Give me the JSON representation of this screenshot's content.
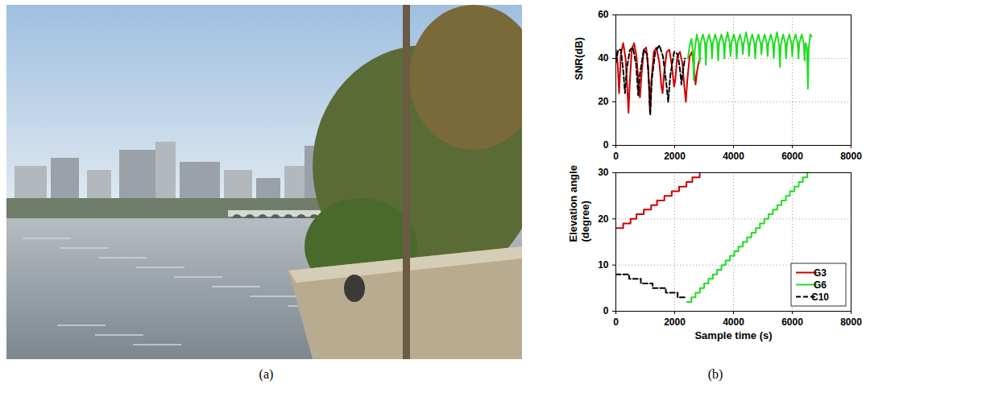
{
  "captions": [
    "(a)",
    "(b)"
  ],
  "chart_data": [
    {
      "type": "line",
      "ylabel": "SNR(dB)",
      "xlim": [
        0,
        8000
      ],
      "xticks": [
        0,
        2000,
        4000,
        6000,
        8000
      ],
      "ylim": [
        0,
        60
      ],
      "yticks": [
        0,
        20,
        40,
        60
      ],
      "grid": true,
      "series": [
        {
          "name": "G3",
          "color": "#d00000",
          "line_style": "solid",
          "x": [
            0,
            60,
            110,
            170,
            250,
            330,
            390,
            430,
            470,
            540,
            620,
            700,
            780,
            820,
            870,
            950,
            1030,
            1100,
            1160,
            1210,
            1290,
            1380,
            1480,
            1550,
            1590,
            1640,
            1730,
            1820,
            1910,
            1980,
            2020,
            2090,
            2180,
            2260,
            2330,
            2380,
            2430,
            2510,
            2590,
            2660,
            2710,
            2760,
            2830,
            2880
          ],
          "values": [
            44,
            38,
            24,
            42,
            47,
            40,
            26,
            15,
            28,
            44,
            47,
            41,
            27,
            22,
            32,
            44,
            45,
            36,
            15,
            30,
            43,
            45,
            38,
            27,
            24,
            33,
            43,
            44,
            36,
            27,
            30,
            41,
            43,
            38,
            27,
            20,
            30,
            41,
            43,
            35,
            28,
            34,
            39,
            40
          ]
        },
        {
          "name": "G6",
          "color": "#22dd22",
          "line_style": "solid",
          "x": [
            2450,
            2510,
            2570,
            2620,
            2650,
            2680,
            2750,
            2820,
            2850,
            2880,
            2960,
            3030,
            3060,
            3090,
            3170,
            3240,
            3270,
            3300,
            3380,
            3450,
            3480,
            3510,
            3590,
            3660,
            3690,
            3720,
            3800,
            3870,
            3900,
            3930,
            4010,
            4080,
            4110,
            4140,
            4220,
            4290,
            4320,
            4350,
            4430,
            4500,
            4530,
            4560,
            4640,
            4710,
            4740,
            4770,
            4850,
            4920,
            4950,
            4980,
            5060,
            5130,
            5160,
            5190,
            5270,
            5340,
            5370,
            5400,
            5480,
            5550,
            5580,
            5610,
            5690,
            5760,
            5790,
            5820,
            5900,
            5970,
            6000,
            6030,
            6110,
            6180,
            6210,
            6240,
            6320,
            6390,
            6420,
            6450,
            6500,
            6530,
            6560,
            6610,
            6660
          ],
          "values": [
            40,
            46,
            49,
            43,
            30,
            43,
            51,
            47,
            38,
            47,
            51,
            47,
            37,
            47,
            51,
            47,
            40,
            47,
            51,
            47,
            39,
            47,
            51,
            47,
            40,
            47,
            52,
            47,
            41,
            47,
            51,
            47,
            40,
            47,
            51,
            47,
            42,
            47,
            52,
            47,
            41,
            47,
            51,
            47,
            40,
            47,
            51,
            47,
            42,
            47,
            51,
            47,
            41,
            47,
            51,
            47,
            40,
            47,
            52,
            46,
            36,
            46,
            51,
            47,
            40,
            47,
            51,
            47,
            41,
            47,
            51,
            47,
            40,
            47,
            51,
            47,
            39,
            47,
            45,
            26,
            45,
            51,
            50
          ]
        },
        {
          "name": "C10",
          "color": "#000000",
          "line_style": "dashed",
          "x": [
            0,
            80,
            170,
            260,
            310,
            370,
            480,
            580,
            690,
            760,
            820,
            950,
            1060,
            1130,
            1170,
            1220,
            1340,
            1480,
            1600,
            1720,
            1780,
            1850,
            1980,
            2100,
            2180,
            2230,
            2280,
            2350
          ],
          "values": [
            38,
            44,
            44,
            33,
            24,
            35,
            44,
            45,
            37,
            23,
            33,
            44,
            42,
            28,
            14,
            30,
            43,
            46,
            41,
            28,
            20,
            32,
            43,
            42,
            35,
            28,
            34,
            40
          ]
        }
      ]
    },
    {
      "type": "step",
      "xlabel": "Sample time (s)",
      "ylabel": "Elevation angle (degree)",
      "xlim": [
        0,
        8000
      ],
      "xticks": [
        0,
        2000,
        4000,
        6000,
        8000
      ],
      "ylim": [
        0,
        30
      ],
      "yticks": [
        0,
        10,
        20,
        30
      ],
      "grid": true,
      "legend": "bottom-right",
      "series": [
        {
          "name": "G3",
          "color": "#d00000",
          "line_style": "solid",
          "x": [
            0,
            250,
            500,
            700,
            950,
            1200,
            1400,
            1650,
            1900,
            2150,
            2400,
            2600,
            2850
          ],
          "values": [
            18,
            19,
            20,
            21,
            22,
            23,
            24,
            25,
            26,
            27,
            28,
            29,
            30
          ]
        },
        {
          "name": "G6",
          "color": "#22dd22",
          "line_style": "solid",
          "x": [
            2420,
            2570,
            2710,
            2860,
            3000,
            3150,
            3300,
            3440,
            3590,
            3730,
            3880,
            4030,
            4170,
            4320,
            4460,
            4610,
            4760,
            4900,
            5050,
            5190,
            5340,
            5490,
            5630,
            5780,
            5920,
            6070,
            6220,
            6360,
            6510
          ],
          "values": [
            2,
            3,
            4,
            5,
            6,
            7,
            8,
            9,
            10,
            11,
            12,
            13,
            14,
            15,
            16,
            17,
            18,
            19,
            20,
            21,
            22,
            23,
            24,
            25,
            26,
            27,
            28,
            29,
            30
          ]
        },
        {
          "name": "C10",
          "color": "#000000",
          "line_style": "dashed",
          "x": [
            0,
            450,
            850,
            1250,
            1700,
            2100,
            2350
          ],
          "values": [
            8,
            7,
            6,
            5,
            4,
            3,
            3
          ]
        }
      ]
    }
  ]
}
